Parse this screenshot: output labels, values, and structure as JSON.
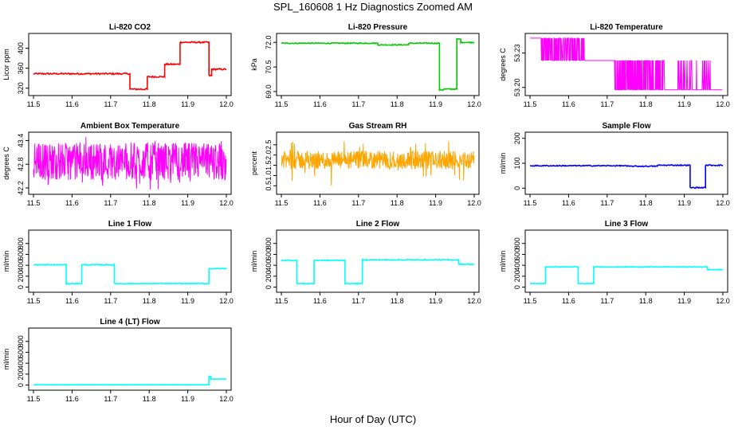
{
  "figure": {
    "title": "SPL_160608  1 Hz Diagnostics Zoomed AM",
    "xlabel": "Hour of Day (UTC)"
  },
  "chart_data": [
    {
      "type": "line",
      "title": "Li-820 CO2",
      "ylabel": "Licor ppm",
      "color": "#ff0000",
      "xlim": [
        11.5,
        12.0
      ],
      "ylim": [
        310,
        425
      ],
      "xticks": [
        "11.5",
        "11.6",
        "11.7",
        "11.8",
        "11.9",
        "12.0"
      ],
      "yticks": [
        {
          "v": 320,
          "label": "320"
        },
        {
          "v": 360,
          "label": "360"
        },
        {
          "v": 400,
          "label": "400"
        }
      ],
      "noise": 1.5,
      "segments": [
        [
          11.5,
          11.75,
          349
        ],
        [
          11.75,
          11.795,
          318
        ],
        [
          11.795,
          11.84,
          343
        ],
        [
          11.84,
          11.88,
          368
        ],
        [
          11.88,
          11.955,
          412
        ],
        [
          11.955,
          11.962,
          345
        ],
        [
          11.962,
          12.0,
          358
        ]
      ]
    },
    {
      "type": "line",
      "title": "Li-820 Pressure",
      "ylabel": "kPa",
      "color": "#00cc00",
      "xlim": [
        11.5,
        12.0
      ],
      "ylim": [
        68.9,
        72.4
      ],
      "xticks": [
        "11.5",
        "11.6",
        "11.7",
        "11.8",
        "11.9",
        "12.0"
      ],
      "yticks": [
        {
          "v": 69.0,
          "label": "69.0"
        },
        {
          "v": 70.5,
          "label": "70.5"
        },
        {
          "v": 72.0,
          "label": "72.0"
        }
      ],
      "noise": 0.03,
      "segments": [
        [
          11.5,
          11.75,
          71.95
        ],
        [
          11.75,
          11.83,
          71.85
        ],
        [
          11.83,
          11.91,
          71.95
        ],
        [
          11.91,
          11.92,
          69.1
        ],
        [
          11.92,
          11.955,
          69.15
        ],
        [
          11.955,
          11.965,
          72.2
        ],
        [
          11.965,
          12.0,
          72.0
        ]
      ]
    },
    {
      "type": "line",
      "title": "Li-820 Temperature",
      "ylabel": "degrees C",
      "color": "#ff00ff",
      "xlim": [
        11.5,
        12.0
      ],
      "ylim": [
        53.195,
        53.245
      ],
      "xticks": [
        "11.5",
        "11.6",
        "11.7",
        "11.8",
        "11.9",
        "12.0"
      ],
      "yticks": [
        {
          "v": 53.2,
          "label": "53.20"
        },
        {
          "v": 53.23,
          "label": "53.23"
        }
      ],
      "levels": [
        53.243,
        53.2235,
        53.198
      ],
      "segments": [
        [
          11.5,
          11.53,
          0,
          0,
          0
        ],
        [
          11.53,
          11.65,
          0,
          1,
          0.6
        ],
        [
          11.65,
          11.72,
          1,
          1,
          0
        ],
        [
          11.72,
          11.85,
          1,
          2,
          0.7
        ],
        [
          11.85,
          11.88,
          2,
          2,
          0
        ],
        [
          11.88,
          11.97,
          2,
          1,
          0.2
        ],
        [
          11.97,
          12.0,
          2,
          2,
          0
        ]
      ]
    },
    {
      "type": "line",
      "title": "Ambient Box Temperature",
      "ylabel": "degrees C",
      "color": "#ff00ff",
      "xlim": [
        11.5,
        12.0
      ],
      "ylim": [
        42.1,
        43.55
      ],
      "xticks": [
        "11.5",
        "11.6",
        "11.7",
        "11.8",
        "11.9",
        "12.0"
      ],
      "yticks": [
        {
          "v": 42.2,
          "label": "42.2"
        },
        {
          "v": 42.8,
          "label": "42.8"
        },
        {
          "v": 43.4,
          "label": "43.4"
        }
      ],
      "band": [
        42.4,
        43.35
      ],
      "spikes": [
        42.15,
        43.5
      ]
    },
    {
      "type": "line",
      "title": "Gas Stream RH",
      "ylabel": "percent",
      "color": "#ffa500",
      "xlim": [
        11.5,
        12.0
      ],
      "ylim": [
        0.2,
        3.0
      ],
      "xticks": [
        "11.5",
        "11.6",
        "11.7",
        "11.8",
        "11.9",
        "12.0"
      ],
      "yticks": [
        {
          "v": 0.5,
          "label": "0.5"
        },
        {
          "v": 1.0,
          "label": "1.0"
        },
        {
          "v": 1.5,
          "label": "1.5"
        },
        {
          "v": 2.0,
          "label": "2.0"
        },
        {
          "v": 2.5,
          "label": "2.5"
        }
      ],
      "band": [
        1.3,
        2.2
      ],
      "spikes": [
        0.3,
        2.9
      ]
    },
    {
      "type": "line",
      "title": "Sample Flow",
      "ylabel": "ml/min",
      "color": "#0000ff",
      "xlim": [
        11.5,
        12.0
      ],
      "ylim": [
        -15,
        215
      ],
      "xticks": [
        "11.5",
        "11.6",
        "11.7",
        "11.8",
        "11.9",
        "12.0"
      ],
      "yticks": [
        {
          "v": 0,
          "label": "0"
        },
        {
          "v": 100,
          "label": "100"
        },
        {
          "v": 200,
          "label": "200"
        }
      ],
      "noise": 2,
      "segments": [
        [
          11.5,
          11.75,
          90
        ],
        [
          11.75,
          11.83,
          88
        ],
        [
          11.83,
          11.915,
          92
        ],
        [
          11.915,
          11.955,
          2
        ],
        [
          11.955,
          12.0,
          92
        ]
      ]
    },
    {
      "type": "line",
      "title": "Line 1 Flow",
      "ylabel": "ml/min",
      "color": "#00ffff",
      "xlim": [
        11.5,
        12.0
      ],
      "ylim": [
        -50,
        1000
      ],
      "xticks": [
        "11.5",
        "11.6",
        "11.7",
        "11.8",
        "11.9",
        "12.0"
      ],
      "yticks": [
        {
          "v": 0,
          "label": "0"
        },
        {
          "v": 200,
          "label": "200"
        },
        {
          "v": 400,
          "label": "400"
        },
        {
          "v": 600,
          "label": "600"
        },
        {
          "v": 800,
          "label": "800"
        }
      ],
      "noise": 8,
      "segments": [
        [
          11.5,
          11.585,
          410
        ],
        [
          11.585,
          11.625,
          65
        ],
        [
          11.625,
          11.71,
          410
        ],
        [
          11.71,
          11.955,
          65
        ],
        [
          11.955,
          12.0,
          340
        ]
      ]
    },
    {
      "type": "line",
      "title": "Line 2 Flow",
      "ylabel": "ml/min",
      "color": "#00ffff",
      "xlim": [
        11.5,
        12.0
      ],
      "ylim": [
        -50,
        1000
      ],
      "xticks": [
        "11.5",
        "11.6",
        "11.7",
        "11.8",
        "11.9",
        "12.0"
      ],
      "yticks": [
        {
          "v": 0,
          "label": "0"
        },
        {
          "v": 200,
          "label": "200"
        },
        {
          "v": 400,
          "label": "400"
        },
        {
          "v": 600,
          "label": "600"
        },
        {
          "v": 800,
          "label": "800"
        }
      ],
      "noise": 8,
      "segments": [
        [
          11.5,
          11.54,
          490
        ],
        [
          11.54,
          11.585,
          65
        ],
        [
          11.585,
          11.665,
          490
        ],
        [
          11.665,
          11.71,
          65
        ],
        [
          11.71,
          11.96,
          500
        ],
        [
          11.96,
          12.0,
          420
        ]
      ]
    },
    {
      "type": "line",
      "title": "Line 3 Flow",
      "ylabel": "ml/min",
      "color": "#00ffff",
      "xlim": [
        11.5,
        12.0
      ],
      "ylim": [
        -50,
        1000
      ],
      "xticks": [
        "11.5",
        "11.6",
        "11.7",
        "11.8",
        "11.9",
        "12.0"
      ],
      "yticks": [
        {
          "v": 0,
          "label": "0"
        },
        {
          "v": 200,
          "label": "200"
        },
        {
          "v": 400,
          "label": "400"
        },
        {
          "v": 600,
          "label": "600"
        },
        {
          "v": 800,
          "label": "800"
        }
      ],
      "noise": 6,
      "segments": [
        [
          11.5,
          11.54,
          65
        ],
        [
          11.54,
          11.625,
          370
        ],
        [
          11.625,
          11.665,
          65
        ],
        [
          11.665,
          11.96,
          370
        ],
        [
          11.96,
          12.0,
          320
        ]
      ]
    },
    {
      "type": "line",
      "title": "Line 4 (LT) Flow",
      "ylabel": "ml/min",
      "color": "#00ffff",
      "xlim": [
        11.5,
        12.0
      ],
      "ylim": [
        -50,
        1000
      ],
      "xticks": [
        "11.5",
        "11.6",
        "11.7",
        "11.8",
        "11.9",
        "12.0"
      ],
      "yticks": [
        {
          "v": 0,
          "label": "0"
        },
        {
          "v": 200,
          "label": "200"
        },
        {
          "v": 400,
          "label": "400"
        },
        {
          "v": 600,
          "label": "600"
        },
        {
          "v": 800,
          "label": "800"
        }
      ],
      "noise": 2,
      "segments": [
        [
          11.5,
          11.955,
          5
        ],
        [
          11.955,
          11.96,
          160
        ],
        [
          11.96,
          12.0,
          110
        ]
      ]
    }
  ]
}
